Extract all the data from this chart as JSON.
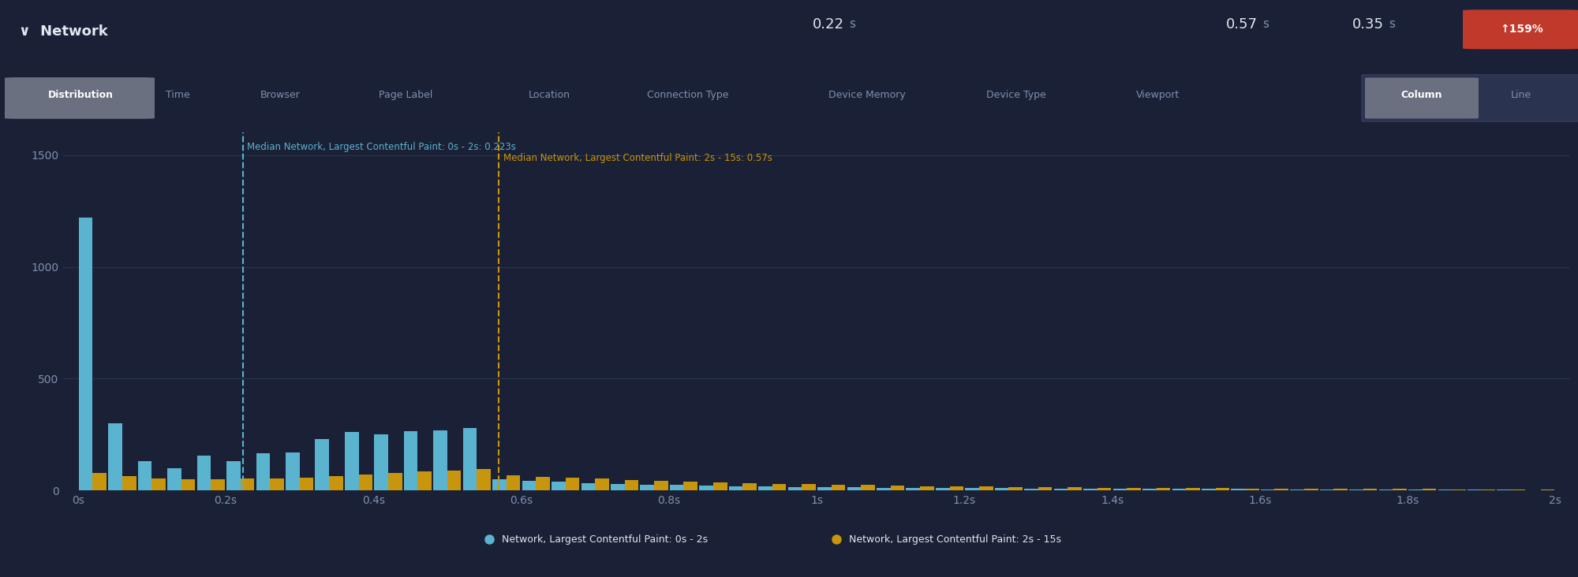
{
  "background_color": "#1a2035",
  "plot_bg_color": "#1a2035",
  "header_bg_color": "#1a2035",
  "grid_color": "#2a3350",
  "cohort1_label": "Network, Largest Contentful Paint: 0s - 2s",
  "cohort2_label": "Network, Largest Contentful Paint: 2s - 15s",
  "cohort1_color": "#5ab4d0",
  "cohort2_color": "#c8960c",
  "median1": 0.223,
  "median2": 0.57,
  "median1_label": "Median Network, Largest Contentful Paint: 0s - 2s: 0.223s",
  "median2_label": "Median Network, Largest Contentful Paint: 2s - 15s: 0.57s",
  "xmin": 0,
  "xmax": 2.0,
  "ymin": 0,
  "ymax": 1600,
  "yticks": [
    0,
    500,
    1000,
    1500
  ],
  "xtick_labels": [
    "0s",
    "0.2s",
    "0.4s",
    "0.6s",
    "0.8s",
    "1s",
    "1.2s",
    "1.4s",
    "1.6s",
    "1.8s",
    "2s"
  ],
  "xtick_values": [
    0,
    0.2,
    0.4,
    0.6,
    0.8,
    1.0,
    1.2,
    1.4,
    1.6,
    1.8,
    2.0
  ],
  "bin_width": 0.04,
  "cohort1_values": [
    1220,
    300,
    130,
    100,
    155,
    130,
    165,
    170,
    230,
    260,
    250,
    265,
    270,
    280,
    50,
    42,
    38,
    34,
    30,
    27,
    24,
    22,
    20,
    18,
    16,
    15,
    14,
    13,
    12,
    11,
    11,
    10,
    9,
    9,
    8,
    8,
    7,
    7,
    6,
    6,
    5,
    5,
    5,
    4,
    4,
    4,
    3,
    3,
    3,
    2
  ],
  "cohort2_values": [
    80,
    65,
    55,
    50,
    50,
    52,
    55,
    58,
    65,
    72,
    78,
    85,
    90,
    95,
    68,
    62,
    57,
    52,
    47,
    43,
    40,
    36,
    33,
    30,
    28,
    26,
    24,
    22,
    20,
    18,
    17,
    16,
    15,
    14,
    13,
    12,
    11,
    10,
    10,
    9,
    8,
    8,
    7,
    7,
    6,
    6,
    5,
    5,
    4,
    3
  ],
  "text_color": "#e0e8f0",
  "tick_text_color": "#8090b0",
  "header_title": "Network",
  "header_metric1_val": "0.22",
  "header_metric1_unit": "s",
  "header_metric2_val": "0.57",
  "header_metric2_unit": "s",
  "header_metric3_val": "0.35",
  "header_metric3_unit": "s",
  "header_badge": "↑159%",
  "badge_color": "#c0392b",
  "tabs": [
    "Distribution",
    "Time",
    "Browser",
    "Page Label",
    "Location",
    "Connection Type",
    "Device Memory",
    "Device Type",
    "Viewport"
  ],
  "view_buttons": [
    "Column",
    "Line"
  ]
}
